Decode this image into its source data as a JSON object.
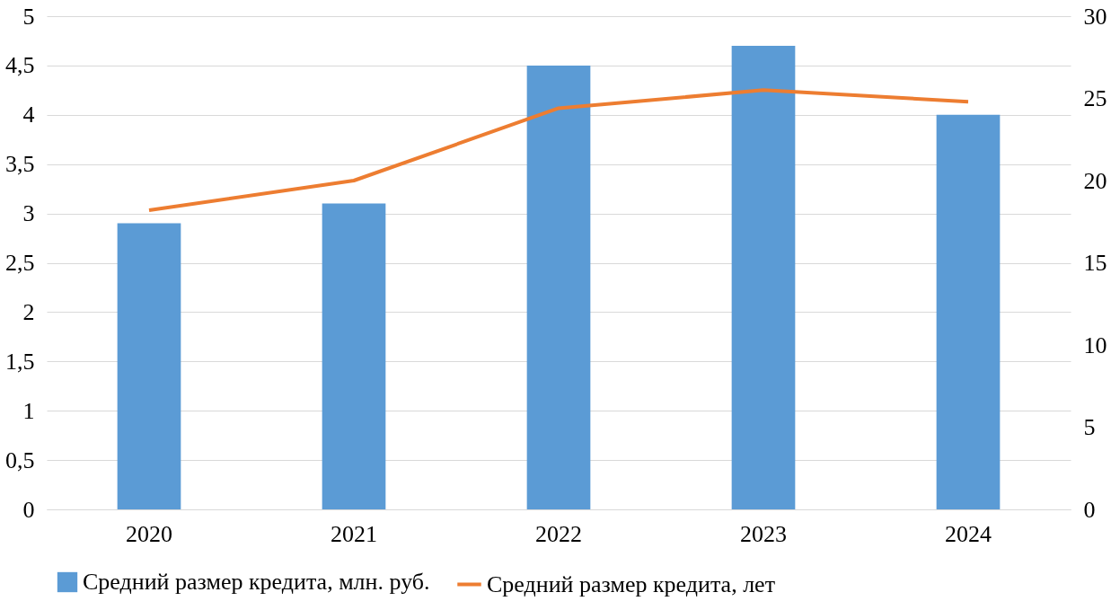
{
  "chart_data": {
    "type": "bar",
    "categories": [
      "2020",
      "2021",
      "2022",
      "2023",
      "2024"
    ],
    "series": [
      {
        "name": "Средний размер кредита, млн. руб.",
        "color": "#5b9bd5",
        "values": [
          2.9,
          3.1,
          4.5,
          4.7,
          4.0
        ]
      },
      {
        "name": "Средний размер кредита, лет",
        "type": "line",
        "axis": "y2",
        "color": "#ed7d31",
        "values": [
          18.2,
          20.0,
          24.4,
          25.5,
          24.8
        ]
      }
    ],
    "ylim": [
      0,
      5
    ],
    "yticks": [
      0,
      {
        "value": 0.5,
        "label": "0,5"
      },
      1,
      {
        "value": 1.5,
        "label": "1,5"
      },
      2,
      {
        "value": 2.5,
        "label": "2,5"
      },
      3,
      {
        "value": 3.5,
        "label": "3,5"
      },
      4,
      {
        "value": 4.5,
        "label": "4,5"
      },
      5
    ],
    "y2lim": [
      0,
      30
    ],
    "y2ticks": [
      0,
      5,
      10,
      15,
      20,
      25,
      30
    ],
    "grid": "y",
    "legend": "bottom",
    "line_style": "solid",
    "marker": "none"
  }
}
